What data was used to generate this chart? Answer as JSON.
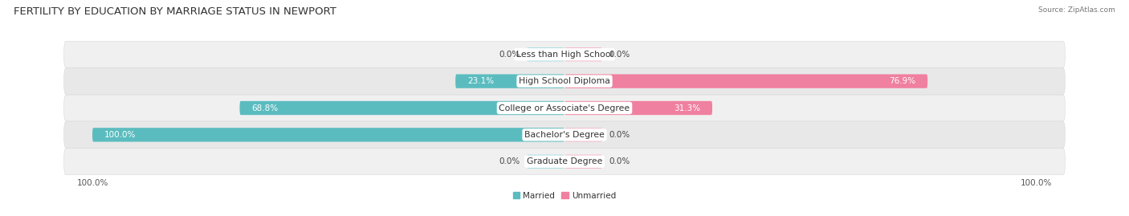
{
  "title": "FERTILITY BY EDUCATION BY MARRIAGE STATUS IN NEWPORT",
  "source": "Source: ZipAtlas.com",
  "categories": [
    "Less than High School",
    "High School Diploma",
    "College or Associate's Degree",
    "Bachelor's Degree",
    "Graduate Degree"
  ],
  "married_values": [
    0.0,
    23.1,
    68.8,
    100.0,
    0.0
  ],
  "unmarried_values": [
    0.0,
    76.9,
    31.3,
    0.0,
    0.0
  ],
  "married_color": "#5bbcbf",
  "unmarried_color": "#f080a0",
  "married_color_light": "#a8dde0",
  "unmarried_color_light": "#f5b8cb",
  "married_label": "Married",
  "unmarried_label": "Unmarried",
  "max_val": 100.0,
  "axis_labels": [
    "100.0%",
    "100.0%"
  ],
  "title_fontsize": 9.5,
  "tick_fontsize": 7.5,
  "bar_label_fontsize": 7.5,
  "category_fontsize": 7.8
}
